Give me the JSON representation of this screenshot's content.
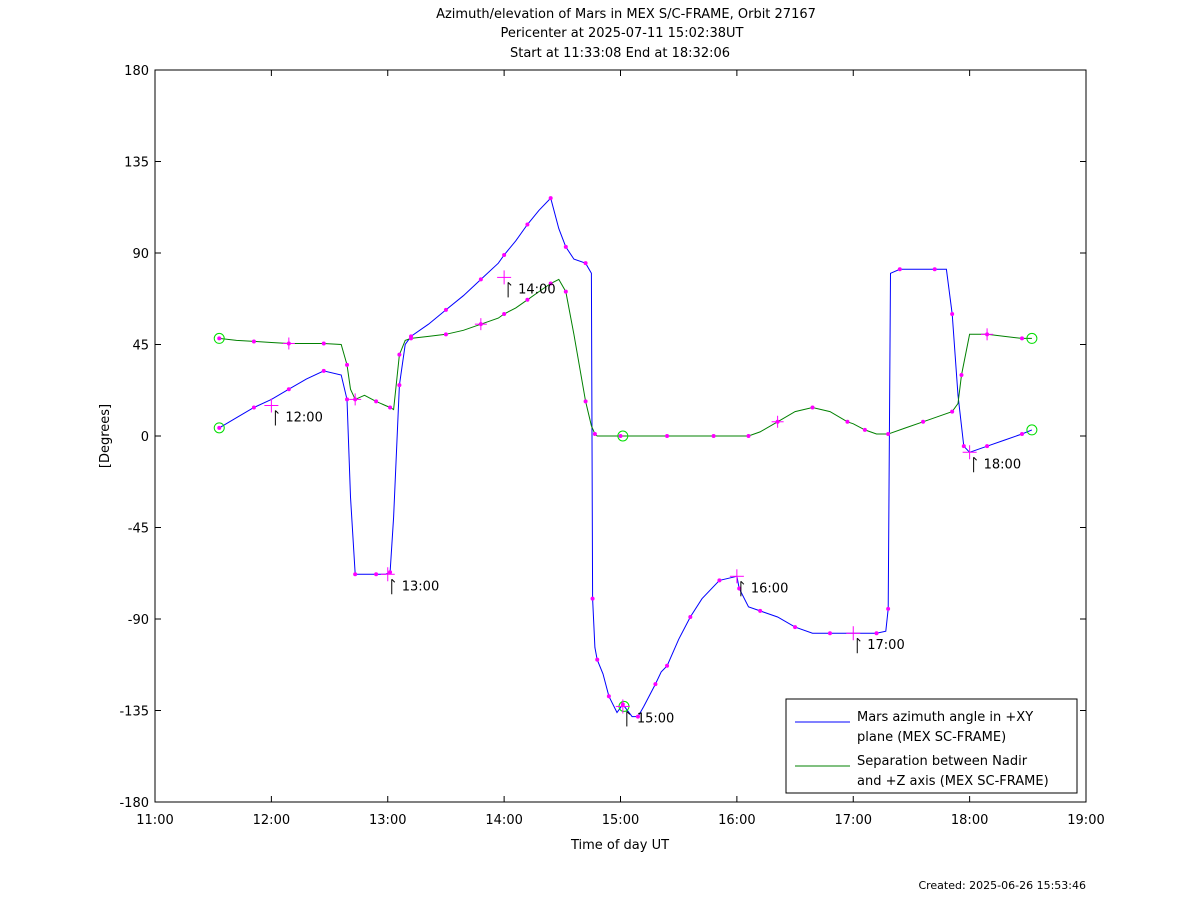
{
  "chart_data": {
    "type": "line",
    "title": "Azimuth/elevation of Mars in MEX S/C-FRAME,  Orbit 27167",
    "subtitle_lines": [
      "Pericenter at 2025-07-11 15:02:38UT",
      "Start at 11:33:08 End at 18:32:06"
    ],
    "xlabel": "Time of day UT",
    "ylabel": "[Degrees]",
    "xlim": [
      11.0,
      19.0
    ],
    "ylim": [
      -180,
      180
    ],
    "x_ticks": [
      11,
      12,
      13,
      14,
      15,
      16,
      17,
      18,
      19
    ],
    "x_tick_labels": [
      "11:00",
      "12:00",
      "13:00",
      "14:00",
      "15:00",
      "16:00",
      "17:00",
      "18:00",
      "19:00"
    ],
    "y_ticks": [
      -180,
      -135,
      -90,
      -45,
      0,
      45,
      90,
      135,
      180
    ],
    "y_tick_labels": [
      "-180",
      "-135",
      "-90",
      "-45",
      "0",
      "45",
      "90",
      "135",
      "180"
    ],
    "grid": false,
    "legend_position": "bottom-right",
    "series": [
      {
        "name": "Mars azimuth angle in +XY plane (MEX SC-FRAME)",
        "legend_lines": [
          "Mars azimuth angle in +XY",
          "plane (MEX SC-FRAME)"
        ],
        "color": "#0000ff",
        "x": [
          11.552,
          11.7,
          11.85,
          12.0,
          12.15,
          12.3,
          12.45,
          12.6,
          12.65,
          12.68,
          12.72,
          12.8,
          12.9,
          12.98,
          13.02,
          13.05,
          13.1,
          13.15,
          13.2,
          13.35,
          13.5,
          13.65,
          13.8,
          13.95,
          14.0,
          14.1,
          14.2,
          14.3,
          14.4,
          14.47,
          14.53,
          14.6,
          14.7,
          14.75,
          14.76,
          14.78,
          14.8,
          14.85,
          14.9,
          14.97,
          15.02,
          15.1,
          15.15,
          15.2,
          15.3,
          15.35,
          15.4,
          15.5,
          15.6,
          15.7,
          15.85,
          16.0,
          16.02,
          16.1,
          16.2,
          16.35,
          16.5,
          16.65,
          16.8,
          17.0,
          17.2,
          17.28,
          17.3,
          17.32,
          17.4,
          17.55,
          17.7,
          17.8,
          17.85,
          17.9,
          17.95,
          18.0,
          18.15,
          18.3,
          18.45,
          18.535
        ],
        "y": [
          4,
          9,
          14,
          18,
          23,
          28,
          32,
          30,
          18,
          -30,
          -68,
          -68,
          -68,
          -68,
          -67,
          -40,
          25,
          45,
          49,
          55,
          62,
          69,
          77,
          85,
          89,
          96,
          104,
          111,
          117,
          102,
          93,
          87,
          85,
          80,
          -80,
          -104,
          -110,
          -117,
          -128,
          -136,
          -132,
          -138,
          -138,
          -133,
          -122,
          -116,
          -113,
          -100,
          -89,
          -80,
          -71,
          -69,
          -75,
          -84,
          -86,
          -89,
          -94,
          -97,
          -97,
          -97,
          -97,
          -96,
          -85,
          80,
          82,
          82,
          82,
          82,
          60,
          20,
          -5,
          -8,
          -5,
          -2,
          1,
          3
        ]
      },
      {
        "name": "Separation between Nadir and +Z axis (MEX SC-FRAME)",
        "legend_lines": [
          "Separation between Nadir",
          "and +Z axis (MEX SC-FRAME)"
        ],
        "color": "#008000",
        "x": [
          11.552,
          11.7,
          11.85,
          12.0,
          12.15,
          12.3,
          12.45,
          12.6,
          12.65,
          12.68,
          12.72,
          12.8,
          12.9,
          12.98,
          13.02,
          13.05,
          13.1,
          13.15,
          13.2,
          13.35,
          13.5,
          13.65,
          13.8,
          13.95,
          14.0,
          14.1,
          14.2,
          14.3,
          14.4,
          14.47,
          14.53,
          14.6,
          14.7,
          14.75,
          14.78,
          14.8,
          15.0,
          15.2,
          15.4,
          15.6,
          15.8,
          16.0,
          16.1,
          16.2,
          16.35,
          16.5,
          16.65,
          16.8,
          16.95,
          17.0,
          17.1,
          17.2,
          17.3,
          17.45,
          17.6,
          17.75,
          17.85,
          17.9,
          17.93,
          18.0,
          18.15,
          18.3,
          18.45,
          18.535
        ],
        "y": [
          48,
          47,
          46.5,
          46,
          45.5,
          45.5,
          45.5,
          45,
          35,
          23,
          18,
          20,
          17,
          15,
          14,
          13,
          40,
          47,
          48,
          49,
          50,
          52,
          55,
          58,
          60,
          63,
          67,
          71,
          75,
          77,
          71,
          50,
          17,
          5,
          1,
          0,
          0,
          0,
          0,
          0,
          0,
          0,
          0,
          2,
          7,
          12,
          14,
          12,
          7,
          6,
          3,
          1,
          1,
          4,
          7,
          10,
          12,
          16,
          30,
          50,
          50,
          49,
          48,
          48
        ]
      }
    ],
    "annotations": [
      {
        "text": "12:00",
        "x": 12.0,
        "y": 15,
        "series": 0
      },
      {
        "text": "13:00",
        "x": 13.0,
        "y": -68,
        "series": 0
      },
      {
        "text": "14:00",
        "x": 14.0,
        "y": 78,
        "series": 0
      },
      {
        "text": "15:00",
        "x": 15.02,
        "y": -133,
        "series": 0
      },
      {
        "text": "16:00",
        "x": 16.0,
        "y": -69,
        "series": 0
      },
      {
        "text": "17:00",
        "x": 17.0,
        "y": -97,
        "series": 0
      },
      {
        "text": "18:00",
        "x": 18.0,
        "y": -8,
        "series": 0
      }
    ],
    "circle_markers": [
      {
        "x": 11.552,
        "y": 4
      },
      {
        "x": 11.552,
        "y": 48
      },
      {
        "x": 15.02,
        "y": 0
      },
      {
        "x": 15.03,
        "y": -133
      },
      {
        "x": 18.535,
        "y": 3
      },
      {
        "x": 18.535,
        "y": 48
      }
    ],
    "marker_color": "#ff00ff",
    "circle_color": "#00dd00"
  },
  "footer": {
    "created": "Created: 2025-06-26 15:53:46"
  }
}
